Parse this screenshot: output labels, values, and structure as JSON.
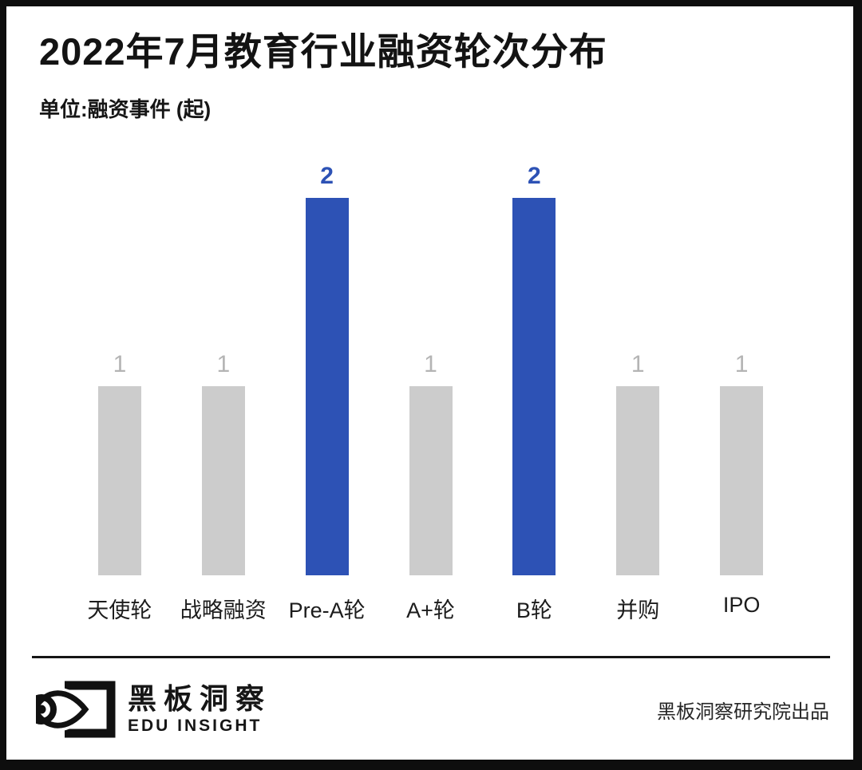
{
  "header": {
    "title": "2022年7月教育行业融资轮次分布",
    "unit_label": "单位:融资事件 (起)"
  },
  "chart_data": {
    "type": "bar",
    "title": "2022年7月教育行业融资轮次分布",
    "unit": "融资事件 (起)",
    "categories": [
      "天使轮",
      "战略融资",
      "Pre-A轮",
      "A+轮",
      "B轮",
      "并购",
      "IPO"
    ],
    "values": [
      1,
      1,
      2,
      1,
      2,
      1,
      1
    ],
    "ylim": [
      0,
      2
    ],
    "grid": false,
    "axes_shown": false,
    "value_labels_shown": true,
    "highlight_indices": [
      2,
      4
    ],
    "colors": {
      "bar_highlight": "#2d52b5",
      "bar_default": "#cccccc",
      "value_label_highlight": "#2d52b5",
      "value_label_default": "#b4b4b4"
    }
  },
  "footer": {
    "brand_cn": "黑板洞察",
    "brand_en": "EDU INSIGHT",
    "credit": "黑板洞察研究院出品",
    "logo_icon": "eye-blackboard-icon"
  }
}
